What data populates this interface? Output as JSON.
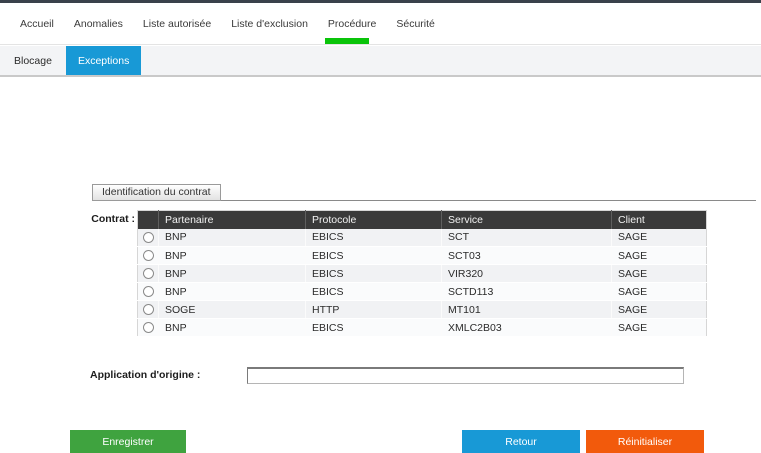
{
  "topnav": {
    "items": [
      {
        "label": "Accueil",
        "active": false
      },
      {
        "label": "Anomalies",
        "active": false
      },
      {
        "label": "Liste autorisée",
        "active": false
      },
      {
        "label": "Liste d'exclusion",
        "active": false
      },
      {
        "label": "Procédure",
        "active": true
      },
      {
        "label": "Sécurité",
        "active": false
      }
    ]
  },
  "tabs": {
    "items": [
      {
        "label": "Blocage",
        "active": false
      },
      {
        "label": "Exceptions",
        "active": true
      }
    ]
  },
  "fieldset": {
    "title": "Identification du contrat"
  },
  "labels": {
    "contrat": "Contrat :",
    "application": "Application d'origine :"
  },
  "form": {
    "application_value": ""
  },
  "table": {
    "columns": [
      "",
      "Partenaire",
      "Protocole",
      "Service",
      "Client"
    ],
    "rows": [
      {
        "partenaire": "BNP",
        "protocole": "EBICS",
        "service": "SCT",
        "client": "SAGE",
        "selected": false
      },
      {
        "partenaire": "BNP",
        "protocole": "EBICS",
        "service": "SCT03",
        "client": "SAGE",
        "selected": false
      },
      {
        "partenaire": "BNP",
        "protocole": "EBICS",
        "service": "VIR320",
        "client": "SAGE",
        "selected": false
      },
      {
        "partenaire": "BNP",
        "protocole": "EBICS",
        "service": "SCTD113",
        "client": "SAGE",
        "selected": false
      },
      {
        "partenaire": "SOGE",
        "protocole": "HTTP",
        "service": "MT101",
        "client": "SAGE",
        "selected": false
      },
      {
        "partenaire": "BNP",
        "protocole": "EBICS",
        "service": "XMLC2B03",
        "client": "SAGE",
        "selected": false
      }
    ]
  },
  "buttons": {
    "save": "Enregistrer",
    "back": "Retour",
    "reset": "Réinitialiser"
  },
  "colors": {
    "topbar": "#3a414b",
    "active_tab_blue": "#1899d6",
    "nav_underline_green": "#0ac40a",
    "table_header": "#3a3a3a",
    "save_green": "#3fa33f",
    "back_blue": "#1899d6",
    "reset_orange": "#f25a0c"
  }
}
